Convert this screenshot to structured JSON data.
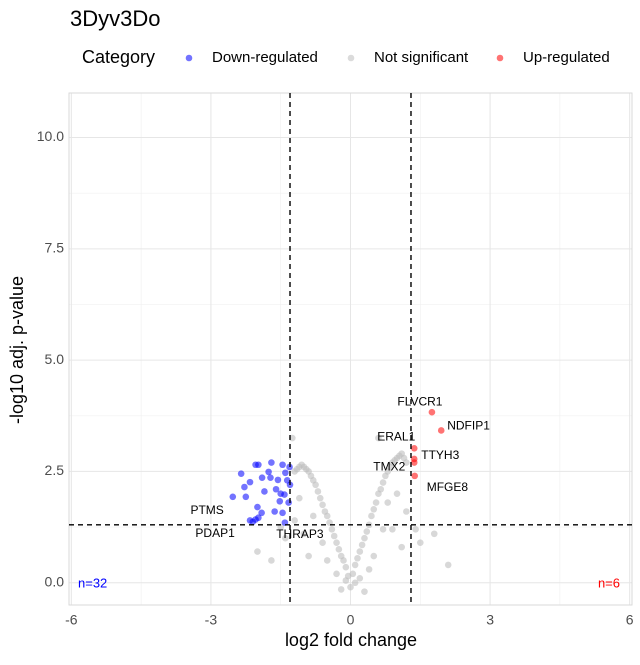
{
  "chart_data": {
    "type": "scatter",
    "title": "3Dyv3Do",
    "x_label": "log2 fold change",
    "y_label": "-log10 adj. p-value",
    "legend_title": "Category",
    "legend_position": "top",
    "grid": true,
    "xlim": [
      -6.05,
      6.05
    ],
    "ylim": [
      -0.5,
      11
    ],
    "xticks": [
      -6,
      -3,
      0,
      3,
      6
    ],
    "yticks": [
      {
        "value": 0,
        "label": "0.0"
      },
      {
        "value": 2.5,
        "label": "2.5"
      },
      {
        "value": 5,
        "label": "5.0"
      },
      {
        "value": 7.5,
        "label": "7.5"
      },
      {
        "value": 10,
        "label": "10.0"
      }
    ],
    "thresholds": {
      "x": [
        -1.3,
        1.3
      ],
      "y": 1.3
    },
    "series": [
      {
        "name": "Down-regulated",
        "color": "#0000ff",
        "count_label": "n=32",
        "x": [
          -2.04,
          -1.98,
          -1.76,
          -1.46,
          -1.31,
          -1.4,
          -1.56,
          -1.72,
          -1.9,
          -2.16,
          -2.28,
          -2.25,
          -2.53,
          -1.42,
          -1.52,
          -1.33,
          -1.46,
          -1.63,
          -1.91,
          -1.98,
          -2.04,
          -2.16,
          -2.1,
          -1.41,
          -1.6,
          -1.3,
          -1.85,
          -1.7,
          -2.35,
          -1.5,
          -1.36,
          -2.0
        ],
        "y": [
          2.65,
          2.65,
          2.49,
          2.65,
          2.6,
          2.47,
          2.31,
          2.36,
          2.36,
          2.26,
          2.15,
          1.93,
          1.93,
          1.98,
          1.83,
          1.8,
          1.57,
          1.6,
          1.57,
          1.46,
          1.42,
          1.4,
          1.37,
          1.35,
          2.1,
          2.2,
          2.05,
          2.7,
          2.45,
          2.0,
          2.3,
          1.7
        ],
        "labels": [
          null,
          null,
          null,
          null,
          null,
          null,
          null,
          null,
          null,
          null,
          null,
          "PTMS",
          null,
          null,
          null,
          null,
          null,
          null,
          null,
          null,
          null,
          null,
          "PDAP1",
          "THRAP3",
          null,
          null,
          null,
          null,
          null,
          null,
          null,
          null
        ]
      },
      {
        "name": "Not significant",
        "color": "#bebebe",
        "x": [
          -0.05,
          0.05,
          -0.1,
          0.1,
          -0.15,
          0.15,
          -0.2,
          0.2,
          -0.25,
          0.25,
          -0.3,
          0.3,
          -0.35,
          0.35,
          -0.4,
          0.4,
          -0.45,
          0.45,
          -0.5,
          0.5,
          -0.55,
          0.55,
          -0.6,
          0.6,
          -0.65,
          0.65,
          -0.7,
          0.7,
          -0.75,
          0.75,
          -0.8,
          0.8,
          -0.85,
          0.85,
          -0.9,
          0.9,
          -0.95,
          0.95,
          -1.0,
          1.0,
          -1.05,
          1.05,
          -1.1,
          1.1,
          -1.15,
          1.15,
          -1.2,
          1.2,
          -1.25,
          0.6,
          -0.3,
          0.2,
          0.5,
          -0.6,
          0.9,
          -1.0,
          1.1,
          -1.4,
          1.5,
          -1.7,
          1.8,
          -2.0,
          2.1,
          0.0,
          0.1,
          -0.1,
          0.3,
          -0.2,
          0.8,
          -0.8,
          1.0,
          -1.1,
          0.4,
          -0.5,
          1.2,
          -1.2,
          0.7,
          -0.9,
          1.4,
          -1.5
        ],
        "y": [
          0.15,
          0.2,
          0.35,
          0.4,
          0.5,
          0.55,
          0.6,
          0.7,
          0.75,
          0.85,
          0.9,
          1.0,
          1.05,
          1.15,
          1.2,
          1.3,
          1.35,
          1.5,
          1.5,
          1.65,
          1.6,
          1.8,
          1.75,
          2.0,
          1.9,
          2.1,
          2.05,
          2.25,
          2.2,
          2.4,
          2.3,
          2.5,
          2.4,
          2.6,
          2.5,
          2.7,
          2.55,
          2.75,
          2.6,
          2.8,
          2.65,
          2.85,
          2.6,
          2.9,
          2.55,
          2.8,
          2.5,
          2.7,
          3.25,
          3.25,
          0.2,
          0.1,
          0.6,
          0.9,
          1.2,
          1.1,
          0.8,
          1.0,
          0.9,
          0.5,
          1.1,
          0.7,
          0.4,
          -0.1,
          0.0,
          0.05,
          -0.2,
          -0.15,
          1.8,
          1.5,
          2.0,
          1.9,
          0.3,
          0.5,
          1.6,
          1.4,
          1.2,
          0.6,
          1.2,
          1.25
        ]
      },
      {
        "name": "Up-regulated",
        "color": "#ff0000",
        "count_label": "n=6",
        "x": [
          1.75,
          1.95,
          1.37,
          1.37,
          1.37,
          1.38
        ],
        "y": [
          3.83,
          3.42,
          3.02,
          2.78,
          2.7,
          2.4
        ],
        "labels": [
          "FLVCR1",
          "NDFIP1",
          "ERAL1",
          "TTYH3",
          "TMX2",
          "MFGE8"
        ]
      }
    ]
  }
}
